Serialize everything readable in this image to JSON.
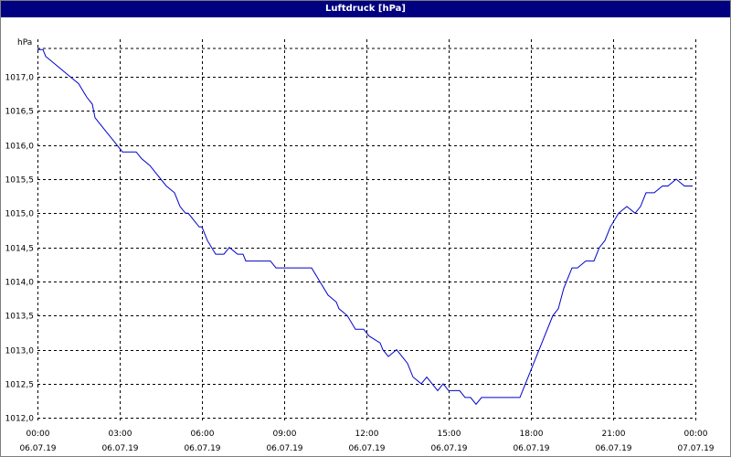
{
  "window": {
    "title": "Luftdruck [hPa]"
  },
  "chart_data": {
    "type": "line",
    "title": "Luftdruck [hPa]",
    "ylabel": "hPa",
    "xlabel": "",
    "ylim": [
      1011.95,
      1017.55
    ],
    "xlim": [
      0,
      24
    ],
    "grid": true,
    "legend": "none",
    "y_ticks": [
      "1012,0",
      "1012,5",
      "1013,0",
      "1013,5",
      "1014,0",
      "1014,5",
      "1015,0",
      "1015,5",
      "1016,0",
      "1016,5",
      "1017,0"
    ],
    "y_tick_values": [
      1012.0,
      1012.5,
      1013.0,
      1013.5,
      1014.0,
      1014.5,
      1015.0,
      1015.5,
      1016.0,
      1016.5,
      1017.0
    ],
    "x_ticks": [
      {
        "time": "00:00",
        "date": "06.07.19"
      },
      {
        "time": "03:00",
        "date": "06.07.19"
      },
      {
        "time": "06:00",
        "date": "06.07.19"
      },
      {
        "time": "09:00",
        "date": "06.07.19"
      },
      {
        "time": "12:00",
        "date": "06.07.19"
      },
      {
        "time": "15:00",
        "date": "06.07.19"
      },
      {
        "time": "18:00",
        "date": "06.07.19"
      },
      {
        "time": "21:00",
        "date": "06.07.19"
      },
      {
        "time": "00:00",
        "date": "07.07.19"
      }
    ],
    "x_tick_values": [
      0,
      3,
      6,
      9,
      12,
      15,
      18,
      21,
      24
    ],
    "series": [
      {
        "color": "#0000cc",
        "x": [
          0.0,
          0.2,
          0.3,
          0.6,
          0.9,
          1.2,
          1.5,
          1.8,
          2.0,
          2.1,
          2.3,
          2.5,
          2.7,
          2.9,
          3.1,
          3.6,
          3.8,
          4.1,
          4.3,
          4.5,
          4.7,
          5.0,
          5.2,
          5.4,
          5.5,
          5.9,
          6.0,
          6.2,
          6.5,
          6.8,
          7.0,
          7.3,
          7.5,
          7.6,
          8.0,
          8.5,
          8.7,
          9.0,
          9.4,
          9.5,
          10.0,
          10.3,
          10.6,
          10.9,
          11.0,
          11.3,
          11.6,
          11.9,
          12.1,
          12.5,
          12.6,
          12.8,
          13.1,
          13.3,
          13.5,
          13.7,
          14.0,
          14.2,
          14.4,
          14.6,
          14.8,
          15.0,
          15.2,
          15.4,
          15.6,
          15.8,
          16.0,
          16.2,
          16.6,
          16.9,
          17.1,
          17.3,
          17.5,
          17.6,
          17.8,
          18.0,
          18.2,
          18.5,
          18.8,
          19.0,
          19.2,
          19.5,
          19.7,
          20.0,
          20.3,
          20.5,
          20.7,
          20.9,
          21.2,
          21.5,
          21.8,
          22.0,
          22.2,
          22.5,
          22.8,
          23.0,
          23.3,
          23.6,
          23.9
        ],
        "y": [
          1017.4,
          1017.4,
          1017.3,
          1017.2,
          1017.1,
          1017.0,
          1016.9,
          1016.7,
          1016.6,
          1016.4,
          1016.3,
          1016.2,
          1016.1,
          1016.0,
          1015.9,
          1015.9,
          1015.8,
          1015.7,
          1015.6,
          1015.5,
          1015.4,
          1015.3,
          1015.1,
          1015.0,
          1015.0,
          1014.8,
          1014.8,
          1014.6,
          1014.4,
          1014.4,
          1014.5,
          1014.4,
          1014.4,
          1014.3,
          1014.3,
          1014.3,
          1014.2,
          1014.2,
          1014.2,
          1014.2,
          1014.2,
          1014.0,
          1013.8,
          1013.7,
          1013.6,
          1013.5,
          1013.3,
          1013.3,
          1013.2,
          1013.1,
          1013.0,
          1012.9,
          1013.0,
          1012.9,
          1012.8,
          1012.6,
          1012.5,
          1012.6,
          1012.5,
          1012.4,
          1012.5,
          1012.4,
          1012.4,
          1012.4,
          1012.3,
          1012.3,
          1012.2,
          1012.3,
          1012.3,
          1012.3,
          1012.3,
          1012.3,
          1012.3,
          1012.3,
          1012.5,
          1012.7,
          1012.9,
          1013.2,
          1013.5,
          1013.6,
          1013.9,
          1014.2,
          1014.2,
          1014.3,
          1014.3,
          1014.5,
          1014.6,
          1014.8,
          1015.0,
          1015.1,
          1015.0,
          1015.1,
          1015.3,
          1015.3,
          1015.4,
          1015.4,
          1015.5,
          1015.4,
          1015.4
        ]
      }
    ]
  }
}
